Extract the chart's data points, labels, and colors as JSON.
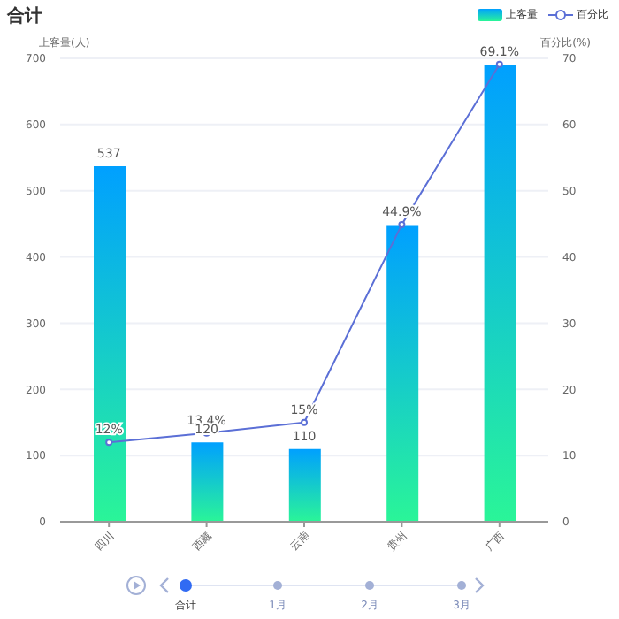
{
  "chart_data": {
    "type": "bar",
    "title": "合计",
    "ylabel": "上客量(人)",
    "y2label": "百分比(%)",
    "categories": [
      "四川",
      "西藏",
      "云南",
      "贵州",
      "广西"
    ],
    "series": [
      {
        "name": "上客量",
        "color": "#00a0ff",
        "values": [
          537,
          120,
          110,
          447,
          690
        ],
        "value_labels": [
          "537",
          "120",
          "110",
          null,
          null
        ]
      },
      {
        "name": "百分比",
        "type": "line",
        "axis": "y2",
        "color": "#5b6fd6",
        "values": [
          12,
          13.4,
          15,
          44.9,
          69.1
        ],
        "value_labels": [
          "12%",
          "13.4%",
          "15%",
          "44.9%",
          "69.1%"
        ]
      }
    ],
    "ylim": [
      0,
      700
    ],
    "yticks": [
      0,
      100,
      200,
      300,
      400,
      500,
      600,
      700
    ],
    "y2lim": [
      0,
      70
    ],
    "y2ticks": [
      0,
      10,
      20,
      30,
      40,
      50,
      60,
      70
    ],
    "grid": "y",
    "legend": "top right",
    "marker": "circle",
    "annotations": [
      "合计",
      "1月",
      "2月",
      "3月"
    ]
  }
}
